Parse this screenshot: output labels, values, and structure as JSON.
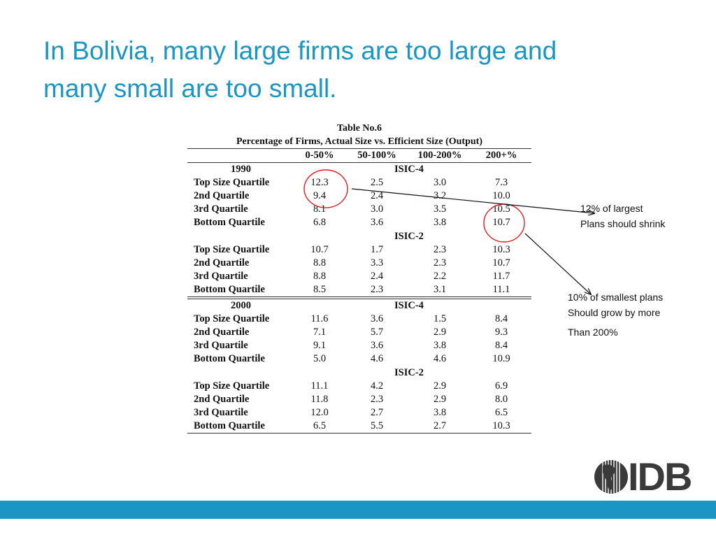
{
  "slide": {
    "title_line1": "In Bolivia, many large firms are too large and",
    "title_line2": "many small are too small."
  },
  "table": {
    "caption_line1": "Table No.6",
    "caption_line2": "Percentage of Firms, Actual Size vs. Efficient Size (Output)",
    "columns": [
      "0-50%",
      "50-100%",
      "100-200%",
      "200+%"
    ],
    "years": [
      {
        "year": "1990",
        "sections": [
          {
            "name": "ISIC-4",
            "rows": [
              {
                "label": "Top Size Quartile",
                "values": [
                  "12.3",
                  "2.5",
                  "3.0",
                  "7.3"
                ]
              },
              {
                "label": "2nd Quartile",
                "values": [
                  "9.4",
                  "2.4",
                  "3.2",
                  "10.0"
                ]
              },
              {
                "label": "3rd Quartile",
                "values": [
                  "8.1",
                  "3.0",
                  "3.5",
                  "10.5"
                ]
              },
              {
                "label": "Bottom Quartile",
                "values": [
                  "6.8",
                  "3.6",
                  "3.8",
                  "10.7"
                ]
              }
            ]
          },
          {
            "name": "ISIC-2",
            "rows": [
              {
                "label": "Top Size Quartile",
                "values": [
                  "10.7",
                  "1.7",
                  "2.3",
                  "10.3"
                ]
              },
              {
                "label": "2nd Quartile",
                "values": [
                  "8.8",
                  "3.3",
                  "2.3",
                  "10.7"
                ]
              },
              {
                "label": "3rd Quartile",
                "values": [
                  "8.8",
                  "2.4",
                  "2.2",
                  "11.7"
                ]
              },
              {
                "label": "Bottom Quartile",
                "values": [
                  "8.5",
                  "2.3",
                  "3.1",
                  "11.1"
                ]
              }
            ]
          }
        ]
      },
      {
        "year": "2000",
        "sections": [
          {
            "name": "ISIC-4",
            "rows": [
              {
                "label": "Top Size Quartile",
                "values": [
                  "11.6",
                  "3.6",
                  "1.5",
                  "8.4"
                ]
              },
              {
                "label": "2nd Quartile",
                "values": [
                  "7.1",
                  "5.7",
                  "2.9",
                  "9.3"
                ]
              },
              {
                "label": "3rd Quartile",
                "values": [
                  "9.1",
                  "3.6",
                  "3.8",
                  "8.4"
                ]
              },
              {
                "label": "Bottom Quartile",
                "values": [
                  "5.0",
                  "4.6",
                  "4.6",
                  "10.9"
                ]
              }
            ]
          },
          {
            "name": "ISIC-2",
            "rows": [
              {
                "label": "Top Size Quartile",
                "values": [
                  "11.1",
                  "4.2",
                  "2.9",
                  "6.9"
                ]
              },
              {
                "label": "2nd Quartile",
                "values": [
                  "11.8",
                  "2.3",
                  "2.9",
                  "8.0"
                ]
              },
              {
                "label": "3rd Quartile",
                "values": [
                  "12.0",
                  "2.7",
                  "3.8",
                  "6.5"
                ]
              },
              {
                "label": "Bottom Quartile",
                "values": [
                  "6.5",
                  "5.5",
                  "2.7",
                  "10.3"
                ]
              }
            ]
          }
        ]
      }
    ]
  },
  "annotations": {
    "largest_line1": "12% of largest",
    "largest_line2": "Plans should shrink",
    "smallest_line1": "10% of smallest plans",
    "smallest_line2": "Should grow by more",
    "smallest_line3": "Than 200%"
  },
  "logo": {
    "text": "IDB"
  },
  "colors": {
    "accent": "#1a96c4",
    "circle": "#e02020"
  }
}
